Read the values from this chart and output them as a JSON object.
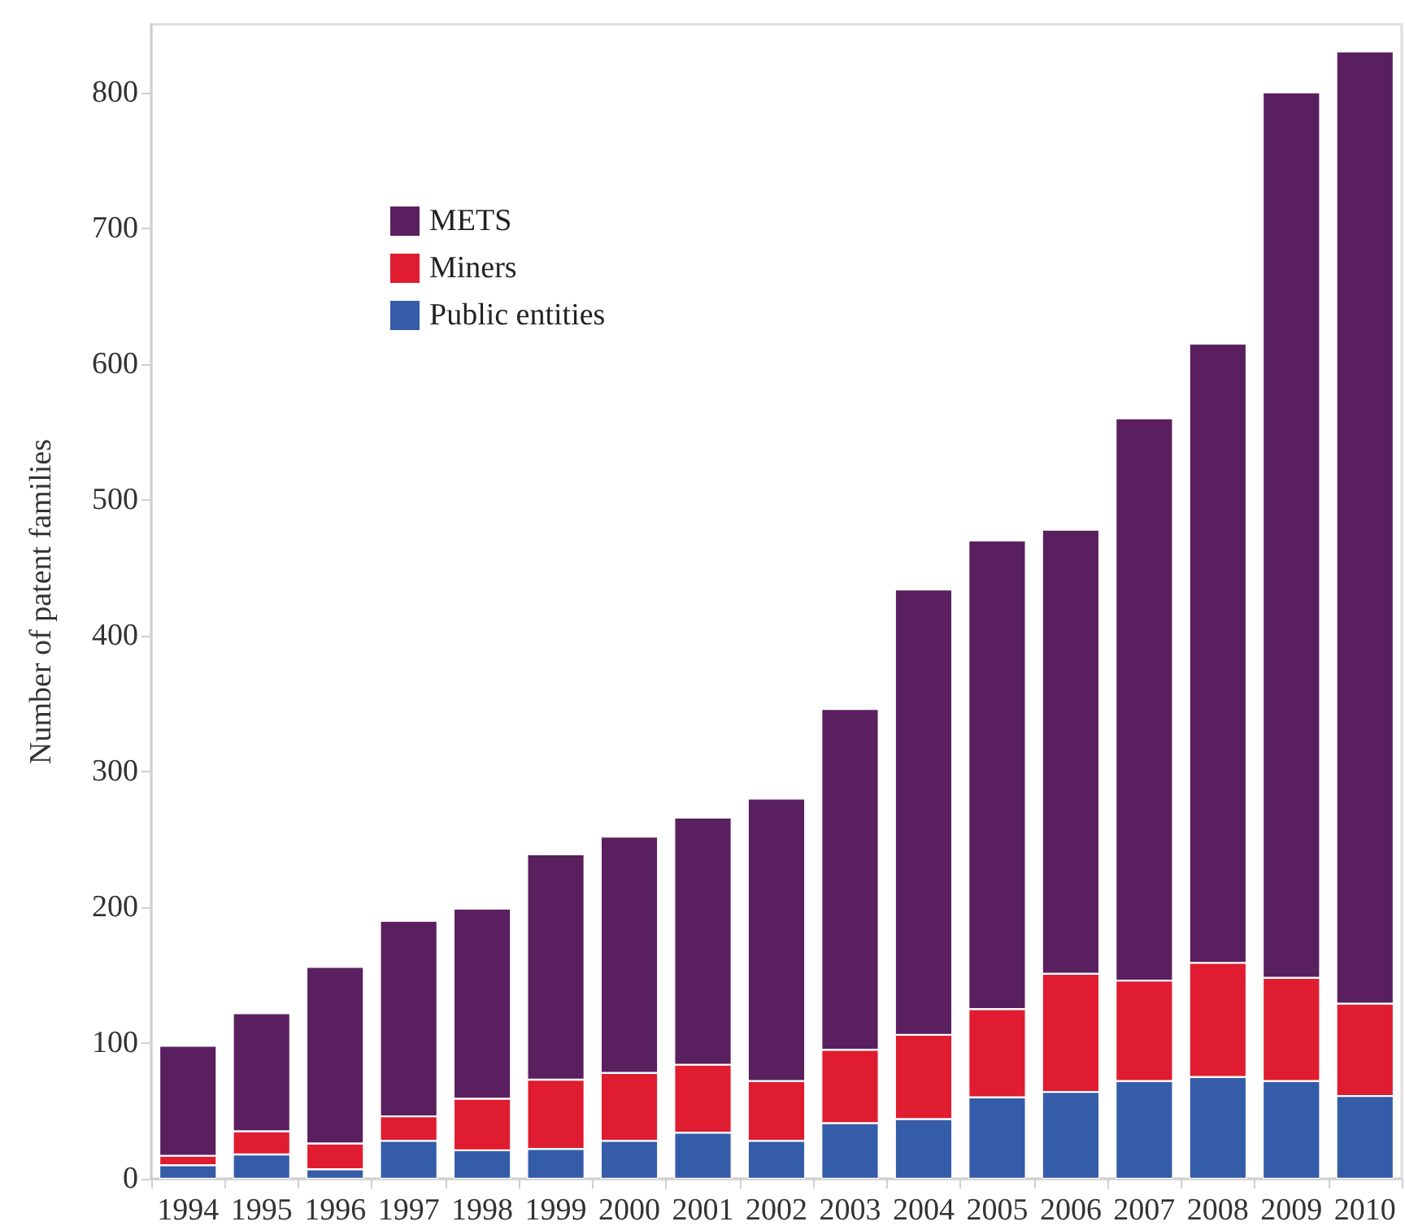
{
  "chart_data": {
    "type": "bar",
    "stacked": true,
    "ylabel": "Number of patent families",
    "categories": [
      "1994",
      "1995",
      "1996",
      "1997",
      "1998",
      "1999",
      "2000",
      "2001",
      "2002",
      "2003",
      "2004",
      "2005",
      "2006",
      "2007",
      "2008",
      "2009",
      "2010"
    ],
    "series": [
      {
        "name": "Public entities",
        "color": "#355ca8",
        "values": [
          10,
          18,
          7,
          28,
          21,
          22,
          28,
          34,
          28,
          41,
          44,
          60,
          64,
          72,
          75,
          72,
          61
        ]
      },
      {
        "name": "Miners",
        "color": "#e01c30",
        "values": [
          7,
          17,
          19,
          18,
          38,
          51,
          50,
          50,
          44,
          54,
          62,
          65,
          87,
          74,
          84,
          76,
          68
        ]
      },
      {
        "name": "METS",
        "color": "#5a1f5e",
        "values": [
          81,
          87,
          130,
          144,
          140,
          166,
          174,
          182,
          208,
          251,
          328,
          345,
          327,
          414,
          456,
          652,
          701
        ]
      }
    ],
    "ylim": [
      0,
      850
    ],
    "yticks": [
      0,
      100,
      200,
      300,
      400,
      500,
      600,
      700,
      800
    ],
    "grid": false,
    "legend": "top left"
  }
}
